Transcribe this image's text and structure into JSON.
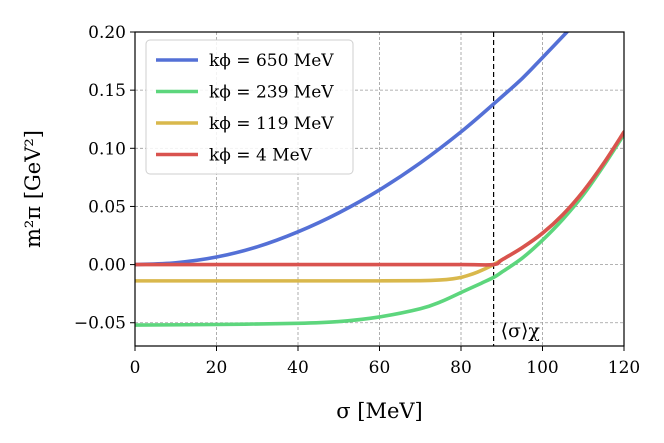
{
  "chart_data": {
    "type": "line",
    "xlabel": "σ [MeV]",
    "ylabel": "m²π [GeV²]",
    "xlim": [
      0,
      120
    ],
    "ylim": [
      -0.07,
      0.2
    ],
    "xticks": [
      0,
      20,
      40,
      60,
      80,
      100,
      120
    ],
    "xtick_labels": [
      "0",
      "20",
      "40",
      "60",
      "80",
      "100",
      "120"
    ],
    "yticks": [
      -0.05,
      0.0,
      0.05,
      0.1,
      0.15,
      0.2
    ],
    "ytick_labels": [
      "−0.05",
      "0.00",
      "0.05",
      "0.10",
      "0.15",
      "0.20"
    ],
    "grid": true,
    "legend_position": "top-left",
    "vline": {
      "x": 88,
      "label": "⟨σ⟩χ"
    },
    "series": [
      {
        "name": "kϕ = 650 MeV",
        "color": "#5470d6",
        "x": [
          0,
          10,
          20,
          30,
          40,
          50,
          60,
          70,
          80,
          88,
          95,
          100,
          106
        ],
        "y": [
          0.0,
          0.0016,
          0.0065,
          0.0153,
          0.0282,
          0.0445,
          0.0642,
          0.0874,
          0.1141,
          0.1381,
          0.16,
          0.178,
          0.2
        ]
      },
      {
        "name": "kϕ = 239 MeV",
        "color": "#5dd67d",
        "x": [
          0,
          20,
          40,
          50,
          60,
          70,
          75,
          80,
          85,
          88,
          90,
          95,
          100,
          105,
          110,
          115,
          120
        ],
        "y": [
          -0.052,
          -0.0515,
          -0.0505,
          -0.049,
          -0.045,
          -0.038,
          -0.032,
          -0.024,
          -0.016,
          -0.011,
          -0.0065,
          0.0055,
          0.021,
          0.039,
          0.06,
          0.085,
          0.112
        ]
      },
      {
        "name": "kϕ = 119 MeV",
        "color": "#d9b84c",
        "x": [
          0,
          20,
          40,
          60,
          70,
          75,
          78,
          80,
          82,
          84,
          86,
          88,
          90,
          95,
          100,
          105,
          110,
          115,
          120
        ],
        "y": [
          -0.014,
          -0.014,
          -0.014,
          -0.014,
          -0.0138,
          -0.0132,
          -0.0122,
          -0.011,
          -0.009,
          -0.0065,
          -0.0035,
          0.0,
          0.004,
          0.0145,
          0.027,
          0.043,
          0.063,
          0.087,
          0.114
        ]
      },
      {
        "name": "kϕ = 4 MeV",
        "color": "#d9534f",
        "x": [
          0,
          20,
          40,
          60,
          80,
          88,
          90,
          95,
          100,
          105,
          110,
          115,
          120
        ],
        "y": [
          0.0,
          0.0,
          0.0,
          0.0,
          0.0,
          0.0,
          0.004,
          0.0145,
          0.027,
          0.043,
          0.063,
          0.087,
          0.114
        ]
      }
    ]
  }
}
